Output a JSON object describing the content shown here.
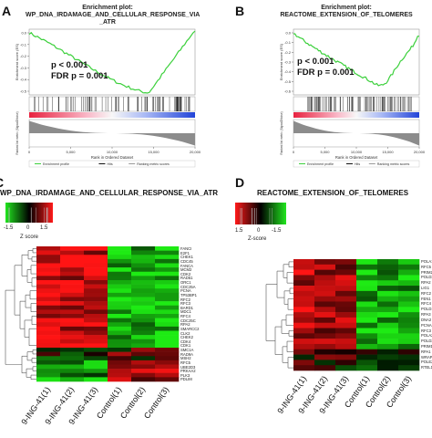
{
  "panelA": {
    "letter": "A",
    "title_line1": "Enrichment plot:",
    "title_line2": "WP_DNA_IRDAMAGE_AND_CELLULAR_RESPONSE_VIA",
    "title_line3": "_ATR",
    "pvalue": "p < 0.001",
    "fdr": "FDR p = 0.001",
    "ylabel_top": "Enrichment score (ES)",
    "ylabel_bottom": "Ranked list metric (Signal2Noise)",
    "xlabel": "Rank in Ordered Dataset",
    "x_ticks": [
      "0",
      "5,000",
      "10,000",
      "15,000",
      "20,000"
    ],
    "y_ticks": [
      "0.0",
      "-0.1",
      "-0.2",
      "-0.3",
      "-0.4",
      "-0.5"
    ],
    "legend": [
      "Enrichment profile",
      "Hits",
      "Ranking metric scores"
    ]
  },
  "panelB": {
    "letter": "B",
    "title_line1": "Enrichment plot:",
    "title_line2": "REACTOME_EXTENSION_OF_TELOMERES",
    "pvalue": "p < 0.001",
    "fdr": "FDR p = 0.001",
    "ylabel_top": "Enrichment score (ES)",
    "ylabel_bottom": "Ranked list metric (Signal2Noise)",
    "xlabel": "Rank in Ordered Dataset",
    "x_ticks": [
      "0",
      "5,000",
      "10,000",
      "15,000",
      "20,000"
    ],
    "y_ticks": [
      "0.0",
      "-0.1",
      "-0.2",
      "-0.3",
      "-0.4",
      "-0.5",
      "-0.6"
    ],
    "legend": [
      "Enrichment profile",
      "Hits",
      "Ranking metric scores"
    ]
  },
  "panelC": {
    "letter": "C",
    "title": "WP_DNA_IRDAMAGE_AND_CELLULAR_RESPONSE_VIA_ATR",
    "zlabel": "Z score",
    "zticks": [
      "-1.5",
      "0",
      "1.5"
    ],
    "genes": [
      "FANCI",
      "E2F1",
      "CHEK1",
      "CDC45",
      "FANCA",
      "MCM2",
      "CDK2",
      "RAD51",
      "ORC1",
      "CDC25A",
      "PCNA",
      "TP53BP1",
      "RFC2",
      "RFC3",
      "BARD1",
      "MDC1",
      "RFC4",
      "CDC25C",
      "RPA2",
      "SMARCC2",
      "CLK2",
      "CHEK2",
      "CDK4",
      "CDK1",
      "SMC1A",
      "RAD9A",
      "MSH2",
      "RFC5",
      "UBE2D3",
      "PRKAA2",
      "PLK3",
      "PDLIM"
    ],
    "samples": [
      "9-ING-41(1)",
      "9-ING-41(2)",
      "9-ING-41(3)",
      "Control(1)",
      "Control(2)",
      "Control(3)"
    ],
    "colors": {
      "high": "#ff1a1a",
      "mid": "#000000",
      "low": "#21e61f"
    }
  },
  "panelD": {
    "letter": "D",
    "title": "REACTOME_EXTENSION_OF_TELOMERES",
    "zlabel": "Z-score",
    "zticks": [
      "1.5",
      "0",
      "-1.5"
    ],
    "genes": [
      "POLA1",
      "RFC5",
      "PRIM2",
      "POLD3",
      "RPA2",
      "LIG1",
      "RFC2",
      "FEN1",
      "RFC4",
      "POLD1",
      "RPA3",
      "DNA2",
      "PCNA",
      "RFC3",
      "POLA2",
      "POLD2",
      "PRIM1",
      "RPA1",
      "WRAP53",
      "POLE2",
      "RTEL1"
    ],
    "samples": [
      "9-ING-41(1)",
      "9-ING-41(2)",
      "9-ING-41(3)",
      "Control(1)",
      "Control(2)",
      "Control(3)"
    ],
    "colors": {
      "high": "#ff1a1a",
      "mid": "#000000",
      "low": "#21e61f"
    }
  }
}
